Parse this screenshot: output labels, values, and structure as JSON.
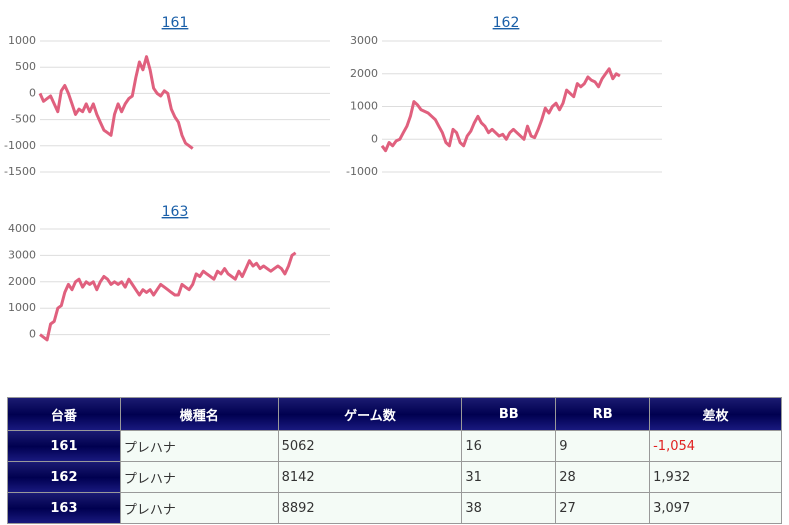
{
  "chart_data": [
    {
      "type": "line",
      "title": "161",
      "color": "#e0607e",
      "ylim": [
        -1500,
        1000
      ],
      "yticks": [
        1000,
        500,
        0,
        -500,
        -1000,
        -1500
      ],
      "grid": true,
      "values": [
        0,
        -150,
        -100,
        -50,
        -200,
        -350,
        50,
        150,
        0,
        -200,
        -400,
        -300,
        -350,
        -200,
        -350,
        -200,
        -400,
        -550,
        -700,
        -750,
        -800,
        -400,
        -200,
        -350,
        -200,
        -100,
        -50,
        300,
        600,
        450,
        700,
        450,
        100,
        0,
        -50,
        50,
        0,
        -300,
        -450,
        -550,
        -800,
        -950,
        -1000,
        -1054
      ]
    },
    {
      "type": "line",
      "title": "162",
      "color": "#e0607e",
      "ylim": [
        -1000,
        3000
      ],
      "yticks": [
        3000,
        2000,
        1000,
        0,
        -1000
      ],
      "grid": true,
      "values": [
        -200,
        -350,
        -100,
        -200,
        -50,
        0,
        200,
        400,
        700,
        1150,
        1050,
        900,
        850,
        800,
        700,
        600,
        400,
        200,
        -100,
        -200,
        300,
        200,
        -100,
        -200,
        100,
        250,
        500,
        700,
        500,
        400,
        200,
        300,
        200,
        100,
        150,
        0,
        200,
        300,
        200,
        100,
        0,
        400,
        100,
        50,
        300,
        600,
        950,
        800,
        1000,
        1100,
        900,
        1100,
        1500,
        1400,
        1300,
        1700,
        1600,
        1700,
        1900,
        1800,
        1750,
        1600,
        1850,
        2000,
        2150,
        1850,
        2000,
        1932
      ]
    },
    {
      "type": "line",
      "title": "163",
      "color": "#e0607e",
      "ylim": [
        -1000,
        4000
      ],
      "yticks": [
        4000,
        3000,
        2000,
        1000,
        0
      ],
      "grid": true,
      "values": [
        0,
        -100,
        -200,
        400,
        500,
        1000,
        1100,
        1600,
        1900,
        1700,
        2000,
        2100,
        1800,
        2000,
        1900,
        2000,
        1700,
        2000,
        2200,
        2100,
        1900,
        2000,
        1900,
        2000,
        1800,
        2100,
        1900,
        1700,
        1500,
        1700,
        1600,
        1700,
        1500,
        1700,
        1900,
        1800,
        1700,
        1600,
        1500,
        1500,
        1900,
        1800,
        1700,
        1900,
        2300,
        2200,
        2400,
        2300,
        2200,
        2100,
        2400,
        2300,
        2500,
        2300,
        2200,
        2100,
        2400,
        2200,
        2500,
        2800,
        2600,
        2700,
        2500,
        2600,
        2500,
        2400,
        2500,
        2600,
        2500,
        2300,
        2600,
        3000,
        3097
      ]
    }
  ],
  "table": {
    "header": [
      "台番",
      "機種名",
      "ゲーム数",
      "BB",
      "RB",
      "差枚"
    ],
    "rows": [
      [
        "161",
        "プレハナ",
        "5062",
        "16",
        "9",
        "-1,054"
      ],
      [
        "162",
        "プレハナ",
        "8142",
        "31",
        "28",
        "1,932"
      ],
      [
        "163",
        "プレハナ",
        "8892",
        "38",
        "27",
        "3,097"
      ]
    ]
  }
}
